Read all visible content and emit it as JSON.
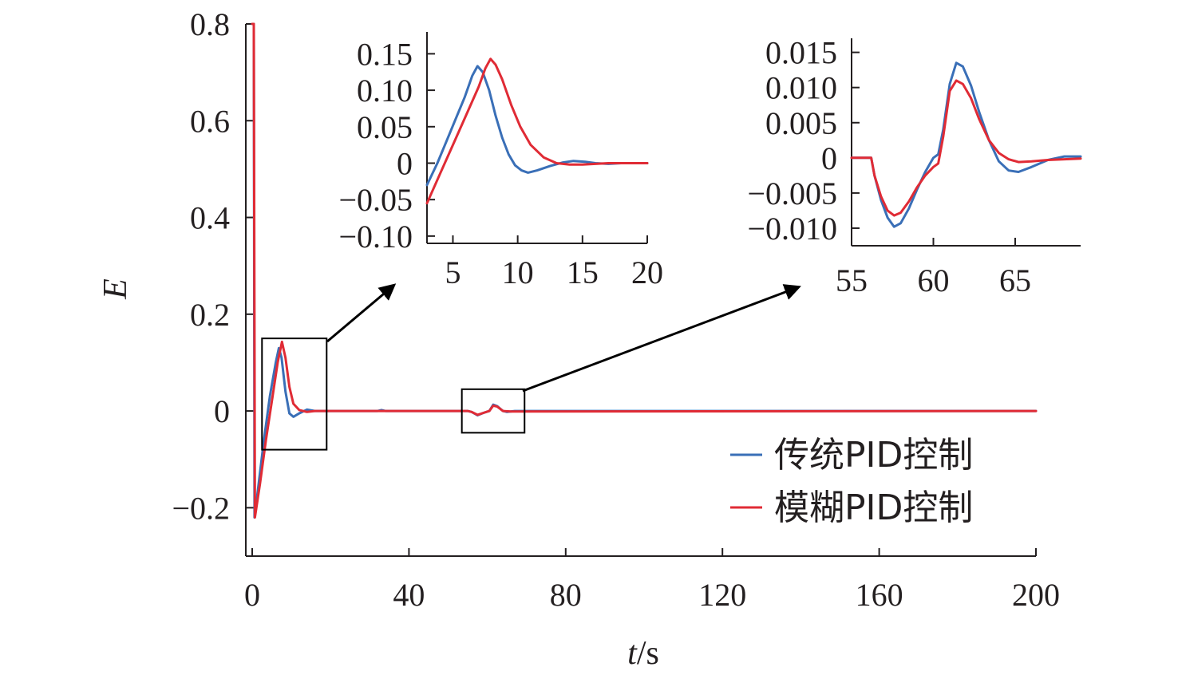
{
  "chart_data": [
    {
      "id": "main",
      "type": "line",
      "xlabel_var": "t",
      "xlabel_unit": "/s",
      "ylabel": "E",
      "xlim": [
        0,
        200
      ],
      "ylim": [
        -0.3,
        0.8
      ],
      "xticks": [
        0,
        40,
        80,
        120,
        160,
        200
      ],
      "yticks": [
        -0.2,
        0,
        0.2,
        0.4,
        0.6,
        0.8
      ],
      "ytick_labels": [
        "−0.2",
        "0",
        "0.2",
        "0.4",
        "0.6",
        "0.8"
      ],
      "series": [
        {
          "name": "传统PID控制",
          "color": "#3a6fb7",
          "points": [
            [
              0,
              0.8
            ],
            [
              0.4,
              0.8
            ],
            [
              0.6,
              -0.22
            ],
            [
              1.5,
              -0.16
            ],
            [
              3,
              -0.06
            ],
            [
              4.5,
              0.03
            ],
            [
              6,
              0.1
            ],
            [
              6.8,
              0.13
            ],
            [
              7.5,
              0.11
            ],
            [
              8.5,
              0.04
            ],
            [
              9.5,
              -0.005
            ],
            [
              10.5,
              -0.012
            ],
            [
              12,
              -0.005
            ],
            [
              14,
              0.003
            ],
            [
              16,
              0.0
            ],
            [
              20,
              0.0
            ],
            [
              32,
              0.0
            ],
            [
              33,
              0.002
            ],
            [
              34,
              0.0
            ],
            [
              55,
              0.0
            ],
            [
              56,
              -0.002
            ],
            [
              57.5,
              -0.009
            ],
            [
              59,
              -0.004
            ],
            [
              60.5,
              0.0
            ],
            [
              61.5,
              0.013
            ],
            [
              62.5,
              0.01
            ],
            [
              64,
              0.0
            ],
            [
              65,
              -0.002
            ],
            [
              67,
              0.0
            ],
            [
              200,
              0.0
            ]
          ]
        },
        {
          "name": "模糊PID控制",
          "color": "#e02b35",
          "points": [
            [
              0,
              0.8
            ],
            [
              0.4,
              0.8
            ],
            [
              0.7,
              -0.22
            ],
            [
              2,
              -0.15
            ],
            [
              3.5,
              -0.06
            ],
            [
              5,
              0.02
            ],
            [
              6.5,
              0.1
            ],
            [
              7.6,
              0.143
            ],
            [
              8.5,
              0.11
            ],
            [
              9.5,
              0.05
            ],
            [
              10.5,
              0.015
            ],
            [
              12,
              0.002
            ],
            [
              14,
              -0.002
            ],
            [
              16,
              0.0
            ],
            [
              20,
              0.0
            ],
            [
              55,
              0.0
            ],
            [
              56,
              -0.002
            ],
            [
              57.5,
              -0.008
            ],
            [
              59,
              -0.004
            ],
            [
              60.5,
              0.0
            ],
            [
              61.5,
              0.011
            ],
            [
              62.5,
              0.009
            ],
            [
              64,
              0.0
            ],
            [
              66,
              -0.001
            ],
            [
              200,
              0.0
            ]
          ]
        }
      ],
      "legend": [
        "传统PID控制",
        "模糊PID控制"
      ],
      "legend_position": "lower-right",
      "zoom_boxes": [
        {
          "x": [
            2.5,
            19
          ],
          "y": [
            -0.08,
            0.15
          ]
        },
        {
          "x": [
            53.5,
            69.5
          ],
          "y": [
            -0.045,
            0.045
          ]
        }
      ]
    },
    {
      "id": "inset1",
      "type": "line",
      "xlim": [
        3,
        20
      ],
      "ylim": [
        -0.11,
        0.18
      ],
      "xticks": [
        5,
        10,
        15,
        20
      ],
      "yticks": [
        -0.1,
        -0.05,
        0,
        0.05,
        0.1,
        0.15
      ],
      "ytick_labels": [
        "−0.10",
        "−0.05",
        "0",
        "0.05",
        "0.10",
        "0.15"
      ],
      "series": [
        {
          "name": "传统PID控制",
          "color": "#3a6fb7",
          "points": [
            [
              3,
              -0.03
            ],
            [
              3.8,
              0.0
            ],
            [
              4.5,
              0.03
            ],
            [
              5.2,
              0.06
            ],
            [
              5.9,
              0.09
            ],
            [
              6.5,
              0.12
            ],
            [
              6.9,
              0.133
            ],
            [
              7.3,
              0.125
            ],
            [
              7.8,
              0.1
            ],
            [
              8.3,
              0.065
            ],
            [
              8.8,
              0.035
            ],
            [
              9.3,
              0.012
            ],
            [
              9.8,
              -0.003
            ],
            [
              10.3,
              -0.01
            ],
            [
              10.8,
              -0.013
            ],
            [
              11.5,
              -0.01
            ],
            [
              12.5,
              -0.004
            ],
            [
              13.5,
              0.001
            ],
            [
              14.3,
              0.003
            ],
            [
              15.2,
              0.002
            ],
            [
              16,
              0.0
            ],
            [
              17,
              -0.001
            ],
            [
              18,
              0.0
            ],
            [
              20,
              0.0
            ]
          ]
        },
        {
          "name": "模糊PID控制",
          "color": "#e02b35",
          "points": [
            [
              3,
              -0.055
            ],
            [
              4,
              -0.015
            ],
            [
              5,
              0.025
            ],
            [
              6,
              0.065
            ],
            [
              7,
              0.105
            ],
            [
              7.5,
              0.13
            ],
            [
              7.9,
              0.143
            ],
            [
              8.3,
              0.135
            ],
            [
              8.8,
              0.115
            ],
            [
              9.5,
              0.08
            ],
            [
              10.2,
              0.05
            ],
            [
              11,
              0.025
            ],
            [
              12,
              0.008
            ],
            [
              13,
              0.0
            ],
            [
              14,
              -0.002
            ],
            [
              15,
              -0.002
            ],
            [
              16,
              -0.001
            ],
            [
              17,
              0.0
            ],
            [
              20,
              0.0
            ]
          ]
        }
      ]
    },
    {
      "id": "inset2",
      "type": "line",
      "xlim": [
        55,
        69
      ],
      "ylim": [
        -0.0125,
        0.017
      ],
      "xticks": [
        55,
        60,
        65
      ],
      "yticks": [
        -0.01,
        -0.005,
        0,
        0.005,
        0.01,
        0.015
      ],
      "ytick_labels": [
        "−0.010",
        "−0.005",
        "0",
        "0.005",
        "0.010",
        "0.015"
      ],
      "series": [
        {
          "name": "传统PID控制",
          "color": "#3a6fb7",
          "points": [
            [
              55,
              0.0
            ],
            [
              56.2,
              0.0
            ],
            [
              56.4,
              -0.0025
            ],
            [
              56.8,
              -0.006
            ],
            [
              57.2,
              -0.0085
            ],
            [
              57.6,
              -0.0098
            ],
            [
              58,
              -0.0093
            ],
            [
              58.5,
              -0.0072
            ],
            [
              59,
              -0.0045
            ],
            [
              59.5,
              -0.002
            ],
            [
              60,
              0.0
            ],
            [
              60.3,
              0.0005
            ],
            [
              60.6,
              0.004
            ],
            [
              61,
              0.0105
            ],
            [
              61.4,
              0.0135
            ],
            [
              61.8,
              0.013
            ],
            [
              62.3,
              0.0103
            ],
            [
              62.8,
              0.0065
            ],
            [
              63.4,
              0.0025
            ],
            [
              64,
              -0.0005
            ],
            [
              64.6,
              -0.0018
            ],
            [
              65.2,
              -0.002
            ],
            [
              66,
              -0.0013
            ],
            [
              67,
              -0.0003
            ],
            [
              68,
              0.0002
            ],
            [
              69,
              0.0002
            ]
          ]
        },
        {
          "name": "模糊PID控制",
          "color": "#e02b35",
          "points": [
            [
              55,
              0.0
            ],
            [
              56.2,
              0.0
            ],
            [
              56.4,
              -0.0025
            ],
            [
              56.8,
              -0.0055
            ],
            [
              57.2,
              -0.0075
            ],
            [
              57.6,
              -0.0082
            ],
            [
              58,
              -0.0078
            ],
            [
              58.5,
              -0.0062
            ],
            [
              59,
              -0.0042
            ],
            [
              59.5,
              -0.0025
            ],
            [
              60,
              -0.0013
            ],
            [
              60.3,
              -0.0008
            ],
            [
              60.6,
              0.003
            ],
            [
              61,
              0.0095
            ],
            [
              61.4,
              0.011
            ],
            [
              61.8,
              0.0105
            ],
            [
              62.3,
              0.0085
            ],
            [
              62.8,
              0.0055
            ],
            [
              63.4,
              0.0025
            ],
            [
              64,
              0.0007
            ],
            [
              64.6,
              -0.0002
            ],
            [
              65.2,
              -0.0006
            ],
            [
              66,
              -0.0005
            ],
            [
              67,
              -0.0003
            ],
            [
              68,
              -0.0002
            ],
            [
              69,
              -0.0001
            ]
          ]
        }
      ]
    }
  ]
}
